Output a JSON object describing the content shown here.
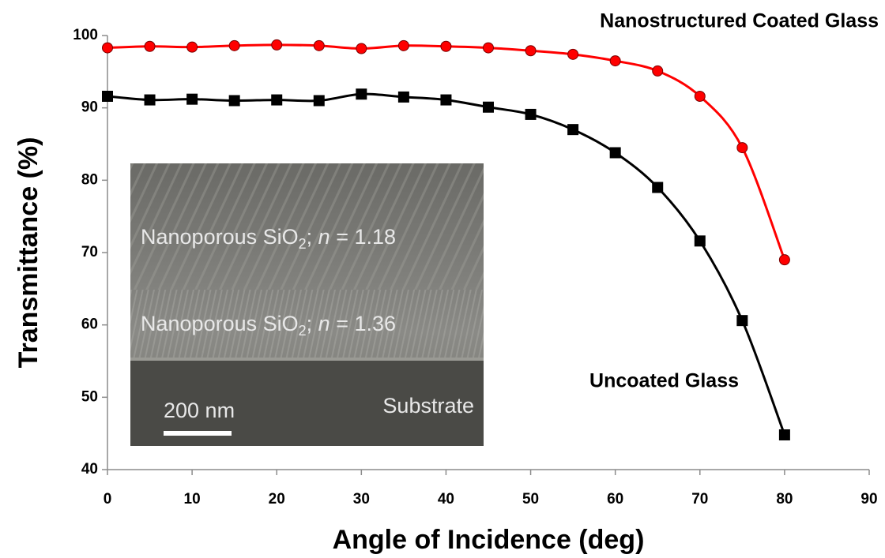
{
  "chart_data": {
    "type": "line",
    "x_label": "Angle of Incidence (deg)",
    "y_label": "Transmittance  (%)",
    "x": [
      0,
      5,
      10,
      15,
      20,
      25,
      30,
      35,
      40,
      45,
      50,
      55,
      60,
      65,
      70,
      75,
      80
    ],
    "series": [
      {
        "name": "Nanostructured Coated Glass",
        "color": "#ff0000",
        "marker": "circle",
        "values": [
          98.3,
          98.5,
          98.4,
          98.6,
          98.7,
          98.6,
          98.2,
          98.6,
          98.5,
          98.3,
          97.9,
          97.4,
          96.5,
          95.1,
          91.6,
          84.5,
          69.0
        ]
      },
      {
        "name": "Uncoated Glass",
        "color": "#000000",
        "marker": "square",
        "values": [
          91.6,
          91.1,
          91.2,
          91.0,
          91.1,
          91.0,
          91.9,
          91.5,
          91.1,
          90.1,
          89.1,
          87.0,
          83.8,
          79.0,
          71.6,
          60.6,
          44.8
        ]
      }
    ],
    "xlim": [
      0,
      90
    ],
    "xticks": [
      0,
      10,
      20,
      30,
      40,
      50,
      60,
      70,
      80,
      90
    ],
    "ylim": [
      40,
      100
    ],
    "yticks": [
      40,
      50,
      60,
      70,
      80,
      90,
      100
    ]
  },
  "inset": {
    "layer_top": [
      "Nanoporous SiO",
      "2",
      "; ",
      "n",
      " = 1.18"
    ],
    "layer_bottom": [
      "Nanoporous SiO",
      "2",
      "; ",
      "n",
      " = 1.36"
    ],
    "scale_bar": "200 nm",
    "substrate": "Substrate"
  }
}
